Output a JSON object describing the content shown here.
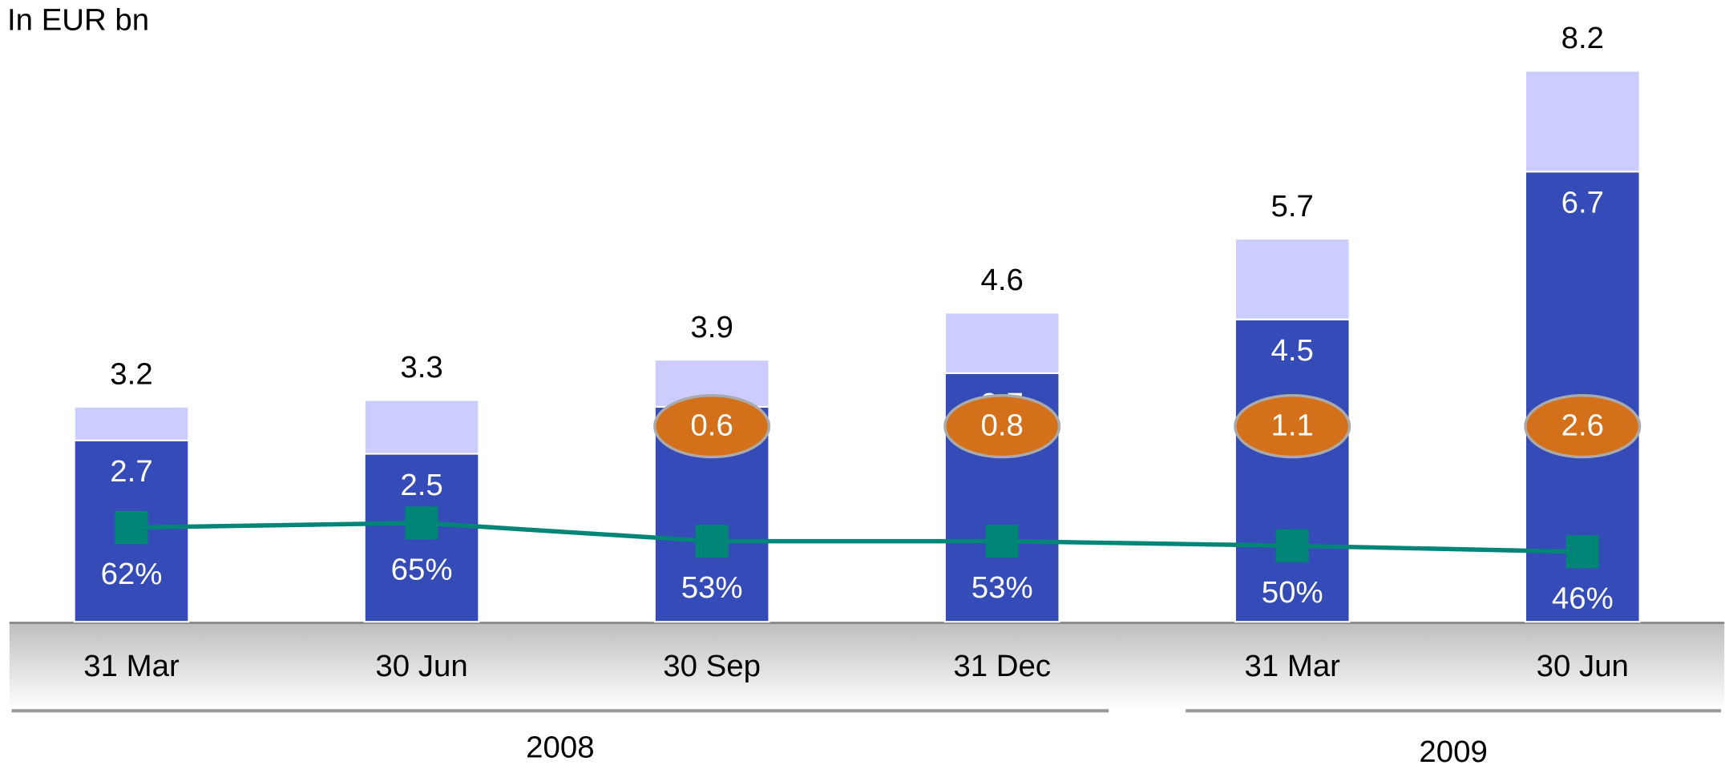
{
  "chart_data": {
    "type": "bar",
    "title": "In EUR bn",
    "categories": [
      "31 Mar",
      "30 Jun",
      "30 Sep",
      "31 Dec",
      "31 Mar",
      "30 Jun"
    ],
    "groups": [
      {
        "name": "2008",
        "count": 4
      },
      {
        "name": "2009",
        "count": 2
      }
    ],
    "series": [
      {
        "color": "#344bb8",
        "values": [
          2.7,
          2.5,
          3.2,
          3.7,
          4.5,
          6.7
        ]
      },
      {
        "color": "#ccccff",
        "values": [
          0.5,
          0.8,
          0.7,
          0.9,
          1.2,
          1.5
        ]
      },
      {
        "type": "line",
        "axis": "y2",
        "color": "#008577",
        "values": [
          62,
          65,
          53,
          53,
          50,
          46
        ],
        "value_labels": [
          "62%",
          "65%",
          "53%",
          "53%",
          "50%",
          "46%"
        ]
      }
    ],
    "totals": [
      3.2,
      3.3,
      3.9,
      4.6,
      5.7,
      8.2
    ],
    "annotations": {
      "color": "#d4701a",
      "values": [
        null,
        null,
        0.6,
        0.8,
        1.1,
        2.6
      ]
    },
    "ylim": [
      0,
      8.6
    ],
    "y2lim": [
      0,
      380
    ]
  }
}
